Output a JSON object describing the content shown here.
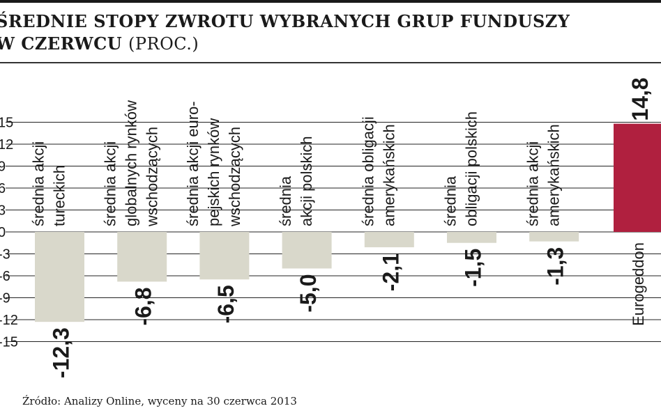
{
  "title_line1": "ŚREDNIE STOPY ZWROTU WYBRANYCH GRUP FUNDUSZY",
  "title_line2": "W CZERWCU",
  "title_unit": "(PROC.)",
  "source": "Źródło: Analizy Online, wyceny na 30 czerwca 2013",
  "chart_data": {
    "type": "bar",
    "categories": [
      [
        "średnia akcji",
        "tureckich"
      ],
      [
        "średnia akcji",
        "globalnych rynków",
        "wschodzących"
      ],
      [
        "średnia akcji euro-",
        "pejskich rynków",
        "wschodzących"
      ],
      [
        "średnia",
        "akcji polskich"
      ],
      [
        "średnia obligacji",
        "amerykańskich"
      ],
      [
        "średnia",
        "obligacji polskich"
      ],
      [
        "średnia akcji",
        "amerykańskich"
      ],
      [
        "Eurogeddon"
      ]
    ],
    "values": [
      -12.3,
      -6.8,
      -6.5,
      -5.0,
      -2.1,
      -1.5,
      -1.3,
      14.8
    ],
    "value_labels": [
      "-12,3",
      "-6,8",
      "-6,5",
      "-5,0",
      "-2,1",
      "-1,5",
      "-1,3",
      "14,8"
    ],
    "yticks": [
      15,
      12,
      9,
      6,
      3,
      0,
      -3,
      -6,
      -9,
      -12,
      -15
    ],
    "ytick_labels": [
      "15",
      "12",
      "9",
      "6",
      "3",
      "0",
      "-3",
      "-6",
      "-9",
      "-12",
      "-15"
    ],
    "ylim": [
      -15,
      15
    ],
    "grid": true,
    "colors": {
      "negative": "#d9d8cb",
      "positive": "#b0203f",
      "grid": "#222222"
    }
  }
}
